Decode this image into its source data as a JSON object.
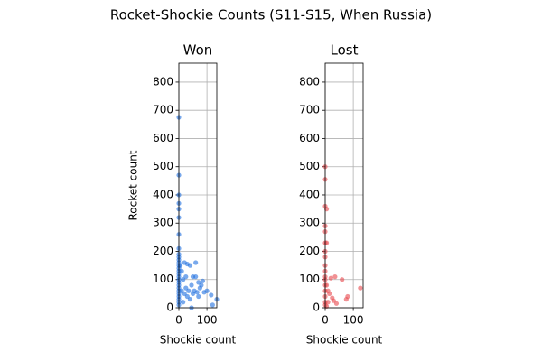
{
  "title": "Rocket-Shockie Counts (S11-S15, When Russia)",
  "chart_data": [
    {
      "type": "scatter",
      "title": "Won",
      "xlabel": "Shockie count",
      "ylabel": "Rocket count",
      "color": "#1f6fe0",
      "grid": true,
      "xlim": [
        0,
        135
      ],
      "ylim": [
        0,
        867
      ],
      "xticks": [
        0,
        100
      ],
      "yticks": [
        0,
        100,
        200,
        300,
        400,
        500,
        600,
        700,
        800
      ],
      "x": [
        0,
        0,
        0,
        0,
        0,
        0,
        0,
        0,
        0,
        0,
        0,
        0,
        0,
        0,
        0,
        0,
        0,
        0,
        0,
        0,
        0,
        0,
        0,
        0,
        0,
        0,
        0,
        5,
        10,
        15,
        20,
        25,
        30,
        35,
        40,
        45,
        50,
        55,
        60,
        60,
        65,
        70,
        75,
        80,
        85,
        90,
        20,
        30,
        10,
        40,
        50,
        115,
        135,
        120,
        45,
        100,
        15,
        25,
        70
      ],
      "values": [
        675,
        470,
        400,
        370,
        350,
        320,
        260,
        210,
        190,
        180,
        170,
        160,
        150,
        140,
        130,
        120,
        110,
        100,
        90,
        80,
        70,
        60,
        50,
        40,
        30,
        20,
        10,
        150,
        130,
        100,
        160,
        110,
        155,
        60,
        150,
        80,
        110,
        60,
        160,
        110,
        55,
        90,
        70,
        80,
        95,
        55,
        50,
        40,
        60,
        30,
        50,
        45,
        30,
        10,
        0,
        60,
        20,
        70,
        40
      ]
    },
    {
      "type": "scatter",
      "title": "Lost",
      "xlabel": "Shockie count",
      "color": "#e8484c",
      "grid": true,
      "xlim": [
        0,
        135
      ],
      "ylim": [
        0,
        867
      ],
      "xticks": [
        0,
        100
      ],
      "yticks": [
        0,
        100,
        200,
        300,
        400,
        500,
        600,
        700,
        800
      ],
      "x": [
        0,
        0,
        0,
        5,
        0,
        0,
        0,
        5,
        0,
        0,
        0,
        0,
        0,
        0,
        0,
        0,
        0,
        0,
        0,
        5,
        10,
        20,
        35,
        25,
        30,
        40,
        60,
        75,
        80,
        125,
        10,
        15,
        5
      ],
      "values": [
        500,
        455,
        360,
        350,
        290,
        270,
        230,
        230,
        200,
        180,
        150,
        130,
        110,
        100,
        80,
        60,
        40,
        20,
        10,
        80,
        60,
        105,
        110,
        35,
        25,
        15,
        100,
        30,
        40,
        70,
        20,
        50,
        5
      ]
    }
  ]
}
